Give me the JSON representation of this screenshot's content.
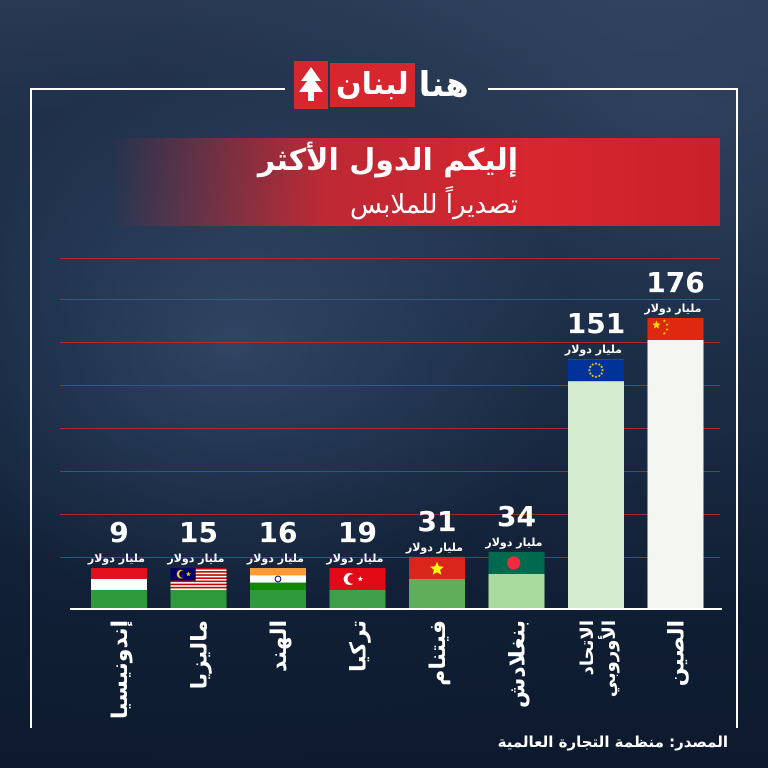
{
  "logo": {
    "red_text": "لبنان",
    "white_text": "هنا"
  },
  "title_line1": "إليكم الدول الأكثر",
  "title_line2": "تصديراً للملابس",
  "source": "المصدر: منظمة التجارة العالمية",
  "colors": {
    "bar_green": "#2f9a3c",
    "bar_light": "#a9dc9c",
    "bar_white": "#f4f6f2",
    "accent_red": "#d7262e"
  },
  "chart_data": {
    "type": "bar",
    "unit_label": "مليار دولار",
    "categories": [
      "إندونيسيا",
      "ماليزيا",
      "الهند",
      "تركيا",
      "فيتنام",
      "بنغلادش",
      "الاتحاد الأوروبي",
      "الصين"
    ],
    "category_lines": [
      [
        "إندونيسيا"
      ],
      [
        "ماليزيا"
      ],
      [
        "الهند"
      ],
      [
        "تركيا"
      ],
      [
        "فيتنام"
      ],
      [
        "بنغلادش"
      ],
      [
        "الاتحاد",
        "الأوروبي"
      ],
      [
        "الصين"
      ]
    ],
    "values": [
      9,
      15,
      16,
      19,
      31,
      34,
      151,
      176
    ],
    "flags": [
      "indonesia-flag",
      "malaysia-flag",
      "india-flag",
      "turkey-flag",
      "vietnam-flag",
      "bangladesh-flag",
      "eu-flag",
      "china-flag"
    ],
    "bar_colors": [
      "#2f9a3c",
      "#2f9a3c",
      "#2f9a3c",
      "#3f9e49",
      "#5fae5a",
      "#a9dc9c",
      "#d5ecd0",
      "#f4f6f2"
    ]
  }
}
